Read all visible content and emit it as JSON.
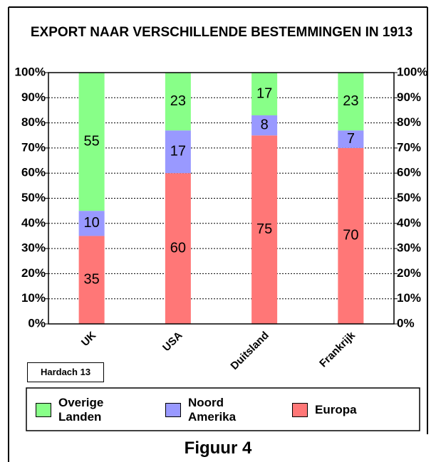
{
  "chart_data": {
    "type": "stacked-bar",
    "title": "EXPORT NAAR VERSCHILLENDE BESTEMMINGEN IN 1913",
    "categories": [
      "UK",
      "USA",
      "Duitsland",
      "Frankrijk"
    ],
    "series": [
      {
        "name": "Europa",
        "color": "#ff7777",
        "values": [
          35,
          60,
          75,
          70
        ]
      },
      {
        "name": "Noord Amerika",
        "color": "#9999ff",
        "values": [
          10,
          17,
          8,
          7
        ]
      },
      {
        "name": "Overige Landen",
        "color": "#88ff88",
        "values": [
          55,
          23,
          17,
          23
        ]
      }
    ],
    "ylim": [
      0,
      100
    ],
    "yticks": [
      {
        "value": 0,
        "label": "0%"
      },
      {
        "value": 10,
        "label": "10%"
      },
      {
        "value": 20,
        "label": "20%"
      },
      {
        "value": 30,
        "label": "30%"
      },
      {
        "value": 40,
        "label": "40%"
      },
      {
        "value": 50,
        "label": "50%"
      },
      {
        "value": 60,
        "label": "60%"
      },
      {
        "value": 70,
        "label": "70%"
      },
      {
        "value": 80,
        "label": "80%"
      },
      {
        "value": 90,
        "label": "90%"
      },
      {
        "value": 100,
        "label": "100%"
      }
    ],
    "grid": true,
    "source": "Hardach 13",
    "caption": "Figuur 4"
  }
}
